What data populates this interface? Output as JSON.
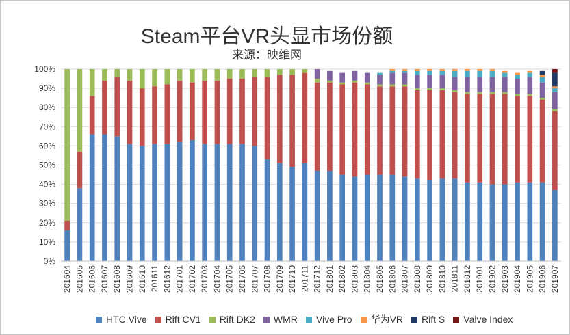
{
  "chart_data": {
    "type": "bar",
    "stacked": true,
    "title": "Steam平台VR头显市场份额",
    "subtitle": "来源：映维网",
    "xlabel": "",
    "ylabel": "",
    "ylim": [
      0,
      100
    ],
    "y_ticks": [
      "0%",
      "10%",
      "20%",
      "30%",
      "40%",
      "50%",
      "60%",
      "70%",
      "80%",
      "90%",
      "100%"
    ],
    "grid": "horizontal",
    "legend_position": "bottom",
    "categories": [
      "201604",
      "201605",
      "201606",
      "201607",
      "201608",
      "201609",
      "201610",
      "201611",
      "201612",
      "201701",
      "201702",
      "201703",
      "201704",
      "201705",
      "201706",
      "201707",
      "201708",
      "201709",
      "201710",
      "201711",
      "201712",
      "201801",
      "201802",
      "201803",
      "201804",
      "201805",
      "201806",
      "201807",
      "201808",
      "201809",
      "201810",
      "201811",
      "201812",
      "201901",
      "201902",
      "201903",
      "201904",
      "201905",
      "201906",
      "201907"
    ],
    "series": [
      {
        "name": "HTC Vive",
        "color": "#4f81bd",
        "values": [
          16,
          38,
          66,
          66,
          65,
          61,
          60,
          61,
          61,
          62,
          63,
          61,
          61,
          61,
          61,
          60,
          53,
          51,
          49,
          51,
          47,
          47,
          45,
          44,
          45,
          45,
          45,
          44,
          43,
          42,
          43,
          43,
          41,
          41,
          40,
          40,
          41,
          41,
          41,
          37
        ]
      },
      {
        "name": "Rift CV1",
        "color": "#c0504d",
        "values": [
          5,
          19,
          20,
          28,
          31,
          33,
          30,
          30,
          31,
          32,
          30,
          33,
          33,
          34,
          34,
          36,
          43,
          46,
          48,
          47,
          46,
          46,
          47,
          49,
          47,
          46,
          46,
          47,
          46,
          47,
          46,
          45,
          46,
          46,
          47,
          47,
          45,
          45,
          43,
          41
        ]
      },
      {
        "name": "Rift DK2",
        "color": "#9bbb59",
        "values": [
          79,
          43,
          14,
          6,
          4,
          6,
          10,
          9,
          8,
          6,
          7,
          6,
          6,
          5,
          5,
          4,
          4,
          3,
          3,
          2,
          2,
          1,
          1,
          1,
          1,
          1,
          1,
          1,
          1,
          1,
          1,
          1,
          1,
          1,
          1,
          1,
          1,
          1,
          1,
          1
        ]
      },
      {
        "name": "WMR",
        "color": "#8064a2",
        "values": [
          0,
          0,
          0,
          0,
          0,
          0,
          0,
          0,
          0,
          0,
          0,
          0,
          0,
          0,
          0,
          0,
          0,
          0,
          0,
          0,
          5,
          5,
          5,
          5,
          5,
          5,
          6,
          6,
          7,
          7,
          7,
          7,
          8,
          8,
          8,
          8,
          8,
          9,
          8,
          9
        ]
      },
      {
        "name": "Vive Pro",
        "color": "#4bacc6",
        "values": [
          0,
          0,
          0,
          0,
          0,
          0,
          0,
          0,
          0,
          0,
          0,
          0,
          0,
          0,
          0,
          0,
          0,
          0,
          0,
          0,
          0,
          0,
          0,
          0,
          0,
          1,
          1,
          1,
          2,
          2,
          2,
          3,
          3,
          3,
          3,
          2,
          2,
          2,
          3,
          2
        ]
      },
      {
        "name": "华为VR",
        "color": "#f79646",
        "values": [
          0,
          0,
          0,
          0,
          0,
          0,
          0,
          0,
          0,
          0,
          0,
          0,
          0,
          0,
          0,
          0,
          0,
          0,
          0,
          0,
          0,
          0,
          0,
          0,
          0,
          0,
          1,
          1,
          1,
          1,
          1,
          1,
          1,
          1,
          1,
          1,
          1,
          1,
          1,
          1
        ]
      },
      {
        "name": "Rift S",
        "color": "#1f3864",
        "values": [
          0,
          0,
          0,
          0,
          0,
          0,
          0,
          0,
          0,
          0,
          0,
          0,
          0,
          0,
          0,
          0,
          0,
          0,
          0,
          0,
          0,
          0,
          0,
          0,
          0,
          0,
          0,
          0,
          0,
          0,
          0,
          0,
          0,
          0,
          0,
          0,
          0,
          0,
          2,
          7
        ]
      },
      {
        "name": "Valve Index",
        "color": "#7b1416",
        "values": [
          0,
          0,
          0,
          0,
          0,
          0,
          0,
          0,
          0,
          0,
          0,
          0,
          0,
          0,
          0,
          0,
          0,
          0,
          0,
          0,
          0,
          0,
          0,
          0,
          0,
          0,
          0,
          0,
          0,
          0,
          0,
          0,
          0,
          0,
          0,
          0,
          0,
          0,
          0,
          2
        ]
      }
    ]
  }
}
